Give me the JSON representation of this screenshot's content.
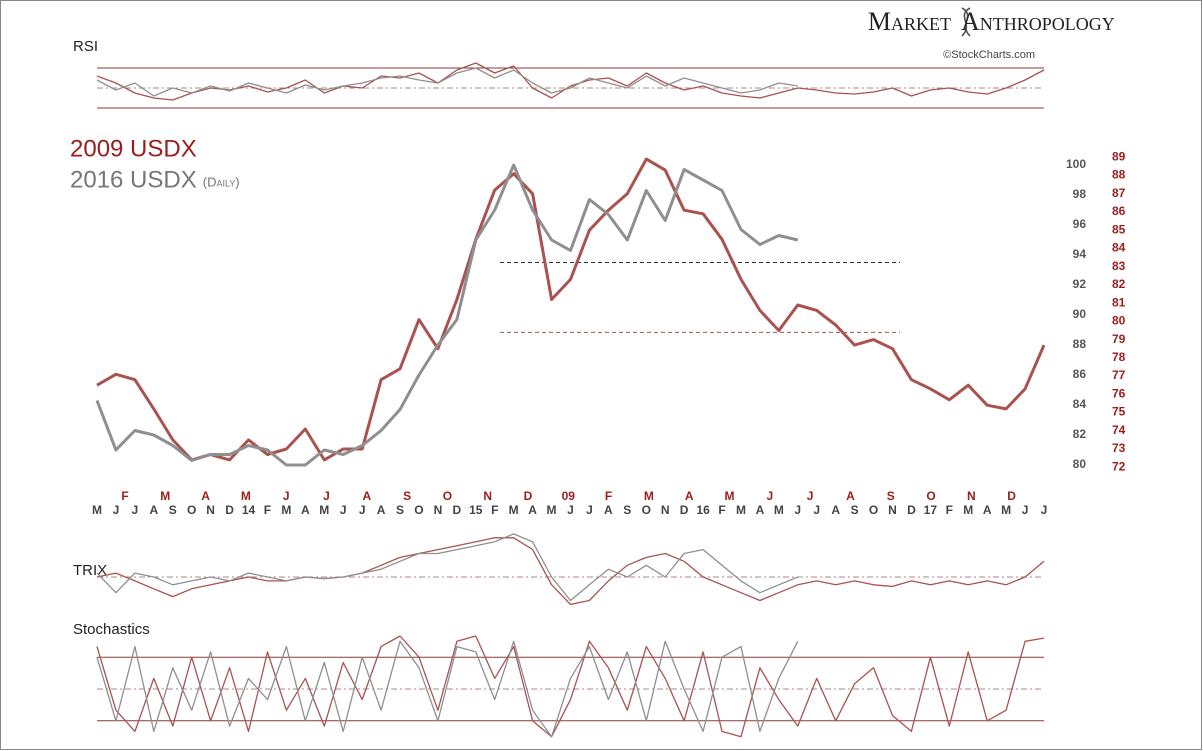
{
  "brand_left": "Market",
  "brand_right": "Anthropology",
  "source": "©StockCharts.com",
  "chart_data": [
    {
      "type": "line",
      "categories": [
        "M",
        "J",
        "J",
        "A",
        "S",
        "O",
        "N",
        "D",
        "14",
        "F",
        "M",
        "A",
        "M",
        "J",
        "J",
        "A",
        "S",
        "O",
        "N",
        "D",
        "15",
        "F",
        "M",
        "A",
        "M",
        "J",
        "J",
        "A",
        "S",
        "O",
        "N",
        "D",
        "16",
        "F",
        "M",
        "A",
        "M",
        "J",
        "J",
        "A",
        "S",
        "O",
        "N",
        "D",
        "17",
        "F",
        "M",
        "A",
        "M",
        "J",
        "J"
      ],
      "x2_labels": [
        "F",
        "M",
        "A",
        "M",
        "J",
        "J",
        "A",
        "S",
        "O",
        "N",
        "D",
        "09",
        "F",
        "M",
        "A",
        "M",
        "J",
        "J",
        "A",
        "S",
        "O",
        "N",
        "D"
      ],
      "series": [
        {
          "name": "2009 USDX",
          "color": "#a9524f",
          "axis": "y2",
          "values": [
            76.5,
            77.1,
            76.8,
            75.2,
            73.5,
            72.4,
            72.7,
            72.4,
            73.5,
            72.7,
            73.0,
            74.1,
            72.4,
            73.0,
            73.0,
            76.8,
            77.4,
            80.1,
            78.5,
            81.2,
            84.5,
            87.2,
            88.1,
            87.0,
            81.2,
            82.3,
            85.0,
            86.1,
            87.0,
            88.9,
            88.3,
            86.1,
            85.9,
            84.5,
            82.3,
            80.6,
            79.5,
            80.9,
            80.6,
            79.8,
            78.7,
            79.0,
            78.5,
            76.8,
            76.3,
            75.7,
            76.5,
            75.4,
            75.2,
            76.3,
            78.7
          ]
        },
        {
          "name": "2016 USDX",
          "note": "(Daily)",
          "color": "#8f8f8f",
          "values": [
            84.3,
            81.0,
            82.3,
            82.0,
            81.3,
            80.3,
            80.7,
            80.7,
            81.3,
            81.0,
            80.0,
            80.0,
            81.0,
            80.7,
            81.3,
            82.3,
            83.7,
            86.0,
            88.0,
            89.7,
            95.0,
            97.0,
            100.0,
            97.0,
            95.0,
            94.3,
            97.7,
            96.7,
            95.0,
            98.3,
            96.3,
            99.7,
            99.0,
            98.3,
            95.7,
            94.7,
            95.3,
            95.0,
            null,
            null,
            null,
            null,
            null,
            null,
            null,
            null,
            null,
            null,
            null,
            null,
            null
          ]
        }
      ],
      "ylim": [
        79,
        101
      ],
      "yticks": [
        80,
        82,
        84,
        86,
        88,
        90,
        92,
        94,
        96,
        98,
        100
      ],
      "y2lim": [
        71.3,
        89.4
      ],
      "y2ticks": [
        72,
        73,
        74,
        75,
        76,
        77,
        78,
        79,
        80,
        81,
        82,
        83,
        84,
        85,
        86,
        87,
        88,
        89
      ],
      "reference_lines": [
        {
          "value": 93.5,
          "axis": "y",
          "color": "#333333"
        },
        {
          "value": 79.4,
          "axis": "y2",
          "color": "#a9524f"
        }
      ]
    },
    {
      "type": "line",
      "title": "RSI",
      "ylim": [
        22,
        75
      ],
      "hlines": [
        70,
        50,
        30
      ],
      "series": [
        {
          "color": "#a9524f",
          "values": [
            62,
            55,
            45,
            40,
            38,
            45,
            50,
            48,
            52,
            46,
            50,
            58,
            45,
            52,
            50,
            62,
            60,
            65,
            55,
            68,
            75,
            65,
            72,
            50,
            40,
            52,
            58,
            60,
            52,
            65,
            55,
            48,
            52,
            45,
            42,
            40,
            45,
            50,
            48,
            45,
            44,
            46,
            50,
            42,
            48,
            50,
            46,
            44,
            50,
            58,
            68
          ]
        },
        {
          "color": "#8f8f8f",
          "values": [
            58,
            48,
            55,
            42,
            50,
            45,
            52,
            47,
            55,
            50,
            45,
            53,
            48,
            52,
            55,
            60,
            62,
            58,
            55,
            65,
            70,
            60,
            68,
            55,
            45,
            50,
            60,
            55,
            50,
            62,
            52,
            60,
            55,
            50,
            45,
            48,
            55,
            52,
            null,
            null,
            null,
            null,
            null,
            null,
            null,
            null,
            null,
            null,
            null,
            null,
            null
          ]
        }
      ]
    },
    {
      "type": "line",
      "title": "TRIX",
      "ylim": [
        -0.6,
        0.6
      ],
      "hlines": [
        0
      ],
      "series": [
        {
          "color": "#a9524f",
          "values": [
            0,
            0.05,
            -0.05,
            -0.15,
            -0.25,
            -0.15,
            -0.1,
            -0.05,
            0,
            -0.05,
            -0.05,
            0,
            -0.02,
            0,
            0.05,
            0.15,
            0.25,
            0.3,
            0.35,
            0.4,
            0.45,
            0.5,
            0.5,
            0.35,
            -0.1,
            -0.35,
            -0.3,
            -0.05,
            0.15,
            0.25,
            0.3,
            0.2,
            0,
            -0.1,
            -0.2,
            -0.3,
            -0.2,
            -0.1,
            -0.05,
            -0.1,
            -0.05,
            -0.1,
            -0.12,
            -0.05,
            -0.1,
            -0.05,
            -0.1,
            -0.05,
            -0.1,
            0,
            0.2
          ]
        },
        {
          "color": "#8f8f8f",
          "values": [
            0.05,
            -0.2,
            0.05,
            0,
            -0.1,
            -0.05,
            0,
            -0.05,
            0.05,
            0,
            -0.05,
            0,
            -0.02,
            0,
            0.05,
            0.1,
            0.2,
            0.3,
            0.3,
            0.35,
            0.4,
            0.45,
            0.55,
            0.45,
            0,
            -0.3,
            -0.1,
            0.1,
            0,
            0.15,
            0,
            0.3,
            0.35,
            0.15,
            -0.05,
            -0.2,
            -0.1,
            0,
            null,
            null,
            null,
            null,
            null,
            null,
            null,
            null,
            null,
            null,
            null,
            null,
            null
          ]
        }
      ]
    },
    {
      "type": "line",
      "title": "Stochastics",
      "ylim": [
        0,
        100
      ],
      "hlines": [
        80,
        50,
        20
      ],
      "series": [
        {
          "color": "#a9524f",
          "values": [
            90,
            30,
            10,
            60,
            15,
            80,
            20,
            70,
            10,
            85,
            30,
            60,
            15,
            75,
            40,
            90,
            100,
            80,
            30,
            95,
            100,
            60,
            90,
            20,
            5,
            40,
            95,
            70,
            30,
            90,
            60,
            20,
            85,
            10,
            5,
            70,
            40,
            15,
            60,
            20,
            55,
            70,
            25,
            10,
            80,
            15,
            85,
            20,
            30,
            95,
            98
          ]
        },
        {
          "color": "#8f8f8f",
          "values": [
            80,
            20,
            90,
            10,
            70,
            30,
            85,
            15,
            60,
            40,
            90,
            20,
            75,
            10,
            80,
            30,
            95,
            70,
            20,
            90,
            85,
            40,
            95,
            30,
            5,
            60,
            90,
            40,
            85,
            20,
            95,
            50,
            10,
            80,
            90,
            10,
            60,
            95,
            null,
            null,
            null,
            null,
            null,
            null,
            null,
            null,
            null,
            null,
            null,
            null,
            null
          ]
        }
      ]
    }
  ]
}
